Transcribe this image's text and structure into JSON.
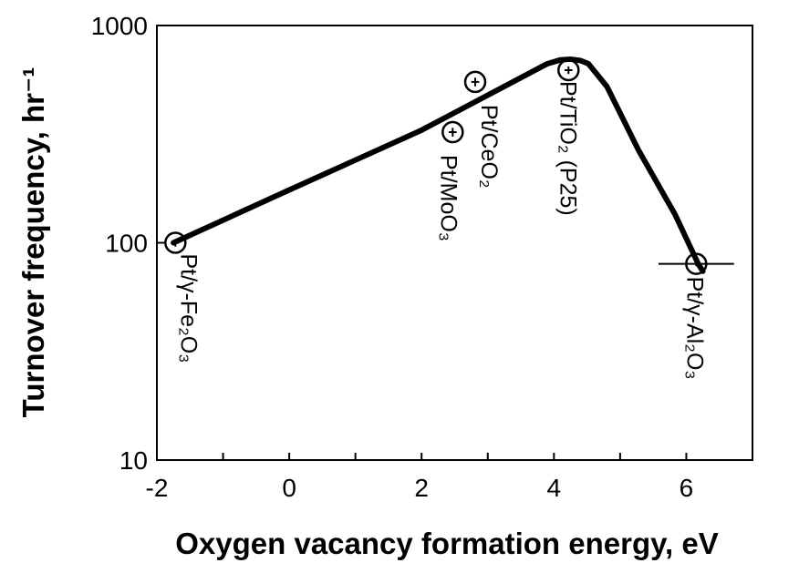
{
  "chart_data": {
    "type": "scatter",
    "x_label": "Oxygen vacancy formation energy, eV",
    "y_label": "Turnover frequency, hr⁻¹",
    "ylog": true,
    "xlim": [
      -2,
      7
    ],
    "ylim": [
      10,
      1000
    ],
    "xticks": [
      -2,
      0,
      2,
      4,
      6
    ],
    "xminorticks": [
      -1,
      1,
      3,
      5
    ],
    "yticks": [
      10,
      100,
      1000
    ],
    "color": "#000000",
    "points": {
      "labels": [
        "Pt/γ-Fe₂O₃",
        "Pt/CeO₂",
        "Pt/MoO₃",
        "Pt/TiO₂ (P25)",
        "Pt/γ-Al₂O₃"
      ],
      "x": [
        -1.72,
        2.81,
        2.47,
        4.22,
        6.15
      ],
      "values": [
        100,
        550,
        323,
        623,
        80
      ],
      "xerr": [
        0.05,
        0.06,
        0.06,
        0.06,
        0.57
      ],
      "yerr": [
        4,
        25,
        15,
        25,
        2
      ]
    },
    "curve": {
      "x": [
        -1.75,
        0,
        2,
        3.9,
        4.1,
        4.25,
        4.4,
        4.52,
        4.8,
        5.28,
        5.83,
        6.18,
        6.25
      ],
      "values": [
        100,
        175,
        330,
        667,
        695,
        700,
        690,
        667,
        524,
        266,
        135,
        80,
        74
      ]
    }
  }
}
